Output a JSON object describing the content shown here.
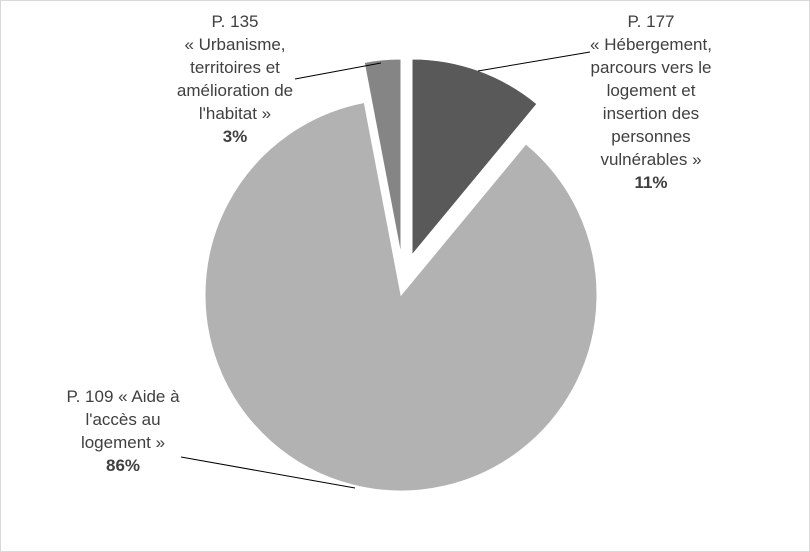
{
  "chart_data": {
    "type": "pie",
    "title": "",
    "slices": [
      {
        "label": "P. 177",
        "label_lines": [
          "P. 177",
          "« Hébergement,",
          "parcours vers le",
          "logement et",
          "insertion des",
          "personnes",
          "vulnérables »"
        ],
        "value": 11,
        "percent_label": "11%",
        "color": "#595959"
      },
      {
        "label": "P. 109",
        "label_lines": [
          "P. 109 « Aide à",
          "l'accès au",
          "logement »"
        ],
        "value": 86,
        "percent_label": "86%",
        "color": "#b2b2b2"
      },
      {
        "label": "P. 135",
        "label_lines": [
          "P. 135",
          "« Urbanisme,",
          "territoires et",
          "amélioration de",
          "l'habitat »"
        ],
        "value": 3,
        "percent_label": "3%",
        "color": "#858585"
      }
    ],
    "start_angle_deg": 0,
    "exploded": true,
    "legend": "none"
  }
}
